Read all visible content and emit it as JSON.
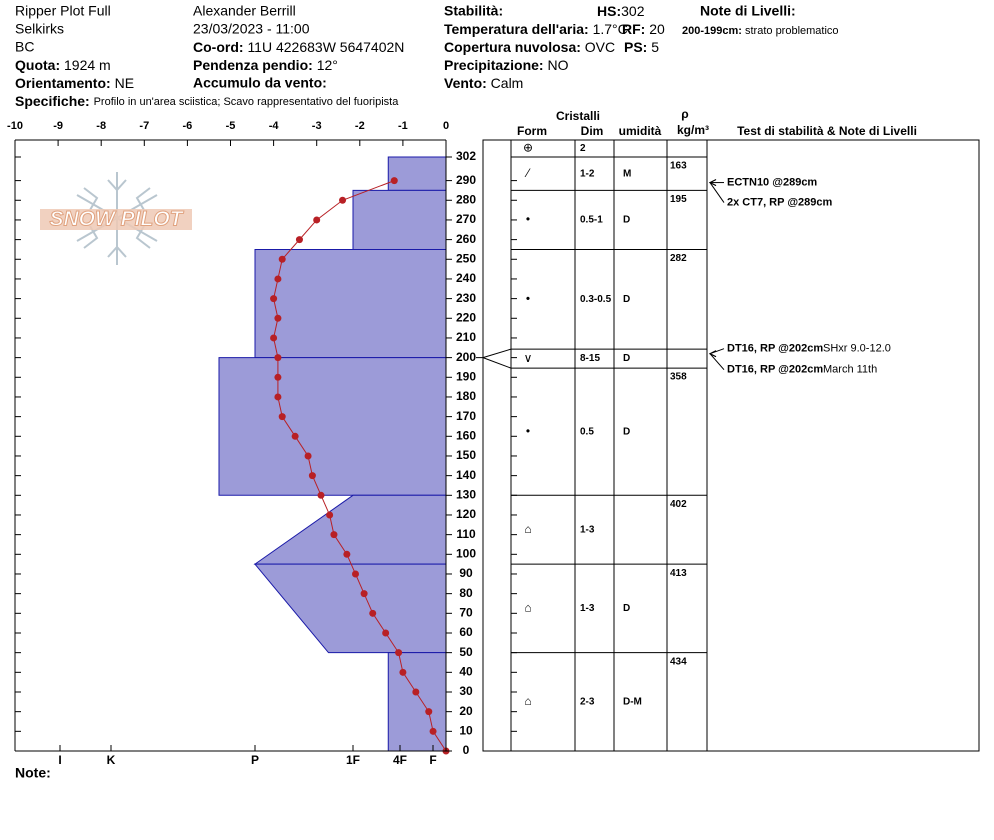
{
  "header": {
    "title": "Ripper Plot Full",
    "observer": "Alexander Berrill",
    "range": "Selkirks",
    "datetime": "23/03/2023 - 11:00",
    "region": "BC",
    "coords": {
      "label": "Co-ord:",
      "value": "11U 422683W 5647402N"
    },
    "elevation": {
      "label": "Quota:",
      "value": "1924 m"
    },
    "slope": {
      "label": "Pendenza pendio:",
      "value": "12°"
    },
    "aspect": {
      "label": "Orientamento:",
      "value": "NE"
    },
    "wind_loading": {
      "label": "Accumulo da vento:"
    },
    "specifics": {
      "label": "Specifiche:",
      "value": "Profilo in un'area sciistica; Scavo rappresentativo del fuoripista"
    },
    "stability": {
      "label": "Stabilità:"
    },
    "air_temp": {
      "label": "Temperatura dell'aria:",
      "value": "1.7°C"
    },
    "cloud": {
      "label": "Copertura nuvolosa:",
      "value": "OVC"
    },
    "precip": {
      "label": "Precipitazione:",
      "value": "NO"
    },
    "wind": {
      "label": "Vento:",
      "value": "Calm"
    },
    "hs": {
      "label": "HS:",
      "value": 302
    },
    "rf": {
      "label": "RF:",
      "value": 20
    },
    "ps": {
      "label": "PS:",
      "value": 5
    },
    "layer_notes": {
      "label": "Note di Livelli:",
      "items": [
        {
          "range": "200-199cm:",
          "text": "strato problematico"
        }
      ]
    },
    "notes_label": "Note:",
    "watermark": "SNOW PILOT"
  },
  "chart_data": {
    "type": "snow-profile",
    "xlim": [
      -10,
      0
    ],
    "xticks": [
      -10,
      -9,
      -8,
      -7,
      -6,
      -5,
      -4,
      -3,
      -2,
      -1,
      0
    ],
    "ylim": [
      0,
      302
    ],
    "yticks": [
      0,
      10,
      20,
      30,
      40,
      50,
      60,
      70,
      80,
      90,
      100,
      110,
      120,
      130,
      140,
      150,
      160,
      170,
      180,
      190,
      200,
      210,
      220,
      230,
      240,
      250,
      260,
      270,
      280,
      290,
      302
    ],
    "hardness_ticks": [
      {
        "value": 6,
        "label": "I"
      },
      {
        "value": 5,
        "label": "K"
      },
      {
        "value": 4,
        "label": "P"
      },
      {
        "value": 3,
        "label": "1F"
      },
      {
        "value": 2,
        "label": "4F"
      },
      {
        "value": 1,
        "label": "F"
      }
    ],
    "temperature": {
      "color": "#b82025",
      "heights": [
        290,
        280,
        270,
        260,
        250,
        240,
        230,
        220,
        210,
        200,
        190,
        180,
        170,
        160,
        150,
        140,
        130,
        120,
        110,
        100,
        90,
        80,
        70,
        60,
        50,
        40,
        30,
        20,
        10,
        0
      ],
      "values": [
        -1.2,
        -2.4,
        -3.0,
        -3.4,
        -3.8,
        -3.9,
        -4.0,
        -3.9,
        -4.0,
        -3.9,
        -3.9,
        -3.9,
        -3.8,
        -3.5,
        -3.2,
        -3.1,
        -2.9,
        -2.7,
        -2.6,
        -2.3,
        -2.1,
        -1.9,
        -1.7,
        -1.4,
        -1.1,
        -1.0,
        -0.7,
        -0.4,
        -0.3,
        0
      ]
    },
    "hardness": {
      "color": "#9c9bd8",
      "edge_color": "#1a1aa8",
      "layers": [
        {
          "top": 302,
          "bottom": 285,
          "hardness_top": 2.25,
          "hardness_bottom": 2.25
        },
        {
          "top": 285,
          "bottom": 255,
          "hardness_top": 3,
          "hardness_bottom": 3
        },
        {
          "top": 255,
          "bottom": 200,
          "hardness_top": 4,
          "hardness_bottom": 4
        },
        {
          "top": 200,
          "bottom": 130,
          "hardness_top": 4.25,
          "hardness_bottom": 4.25
        },
        {
          "top": 130,
          "bottom": 95,
          "hardness_top": 3,
          "hardness_bottom": 4
        },
        {
          "top": 95,
          "bottom": 50,
          "hardness_top": 4,
          "hardness_bottom": 3.25
        },
        {
          "top": 50,
          "bottom": 0,
          "hardness_top": 2.25,
          "hardness_bottom": 2.25
        }
      ]
    }
  },
  "table": {
    "header": {
      "crystals": "Cristalli",
      "form": "Form",
      "size": "Dim",
      "moisture": "umidità",
      "density_symbol": "ρ",
      "density_unit": "kg/m³",
      "tests": "Test di stabilità & Note di Livelli"
    },
    "rows": [
      {
        "form": "⊕",
        "size": "2"
      },
      {
        "top": 302,
        "bottom": 285,
        "form": "⁄",
        "size": "1-2",
        "moisture": "M",
        "density": 163
      },
      {
        "top": 285,
        "bottom": 255,
        "form": "•",
        "size": "0.5-1",
        "moisture": "D",
        "density": 195
      },
      {
        "top": 255,
        "bottom": 200,
        "form": "•",
        "size": "0.3-0.5",
        "moisture": "D",
        "density": 282
      },
      {
        "top": 200,
        "bottom": 199,
        "form": "∨",
        "size": "8-15",
        "moisture": "D"
      },
      {
        "top": 199,
        "bottom": 130,
        "form": "•",
        "size": "0.5",
        "moisture": "D",
        "density": 358
      },
      {
        "top": 130,
        "bottom": 95,
        "form": "⌂",
        "size": "1-3",
        "density": 402
      },
      {
        "top": 95,
        "bottom": 50,
        "form": "⌂",
        "size": "1-3",
        "moisture": "D",
        "density": 413
      },
      {
        "top": 50,
        "bottom": 0,
        "form": "⌂",
        "size": "2-3",
        "moisture": "D-M",
        "density": 434
      }
    ],
    "tests": [
      {
        "label": "ECTN10 @289cm",
        "height": 289
      },
      {
        "label": "2x CT7, RP @289cm",
        "height": 289
      },
      {
        "label": "DT16, RP @202cm",
        "note": "SHxr 9.0-12.0",
        "height": 202
      },
      {
        "label": "DT16, RP @202cm",
        "note": "March 11th",
        "height": 202
      }
    ]
  }
}
